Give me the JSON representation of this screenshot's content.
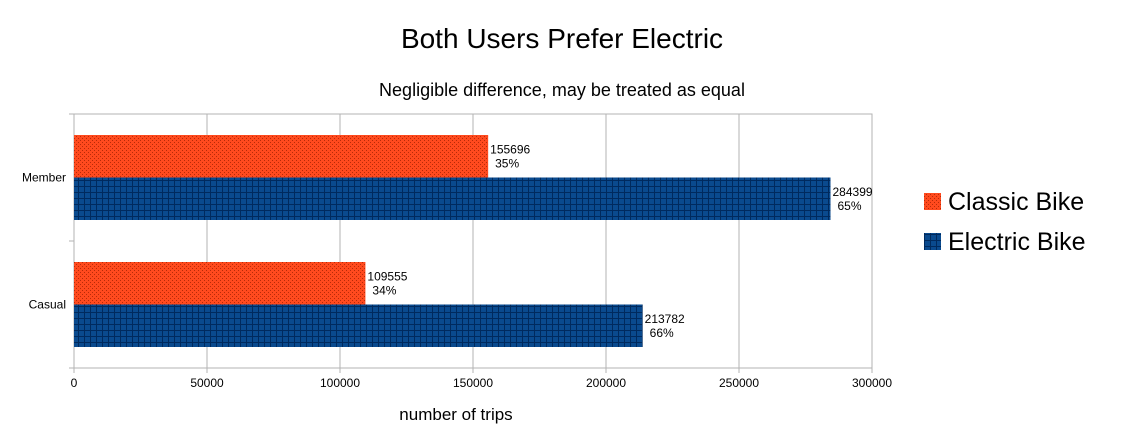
{
  "chart_data": {
    "type": "bar",
    "orientation": "horizontal",
    "title": "Both Users Prefer Electric",
    "subtitle": "Negligible difference, may be treated as equal",
    "xlabel": "number of trips",
    "ylabel": "",
    "xlim": [
      0,
      300000
    ],
    "xticks": [
      "0",
      "50000",
      "100000",
      "150000",
      "200000",
      "250000",
      "300000"
    ],
    "grid": true,
    "legend_position": "right",
    "categories": [
      "Member",
      "Casual"
    ],
    "series": [
      {
        "name": "Classic Bike",
        "color": "#ff4a1e",
        "values": [
          155696,
          109555
        ],
        "percent_labels": [
          "35%",
          "34%"
        ]
      },
      {
        "name": "Electric Bike",
        "color": "#004586",
        "values": [
          284399,
          213782
        ],
        "percent_labels": [
          "65%",
          "66%"
        ]
      }
    ]
  }
}
